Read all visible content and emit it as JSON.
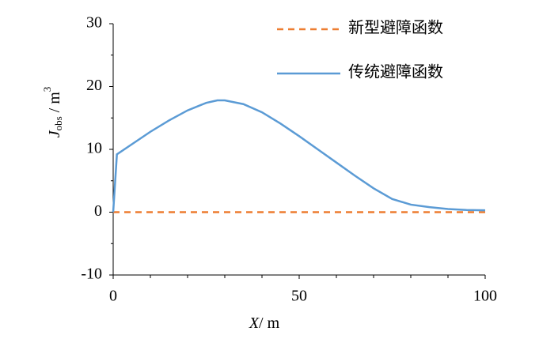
{
  "chart_data": {
    "type": "line",
    "xlabel": [
      "X",
      "/ m"
    ],
    "ylabel": {
      "main": "J",
      "sub": "obs",
      "unit": " / m",
      "sup": "3"
    },
    "xlim": [
      0,
      100
    ],
    "xticks": [
      0,
      50,
      100
    ],
    "xminorticks": [
      10,
      20,
      30,
      40,
      60,
      70,
      80,
      90
    ],
    "ylim": [
      -10,
      30
    ],
    "yticks": [
      -10,
      0,
      10,
      20,
      30
    ],
    "yminorticks": [
      -5,
      5,
      15,
      25
    ],
    "legend": "top-right",
    "series": [
      {
        "name": "新型避障函数",
        "color": "#ED7D31",
        "dash": true,
        "x": [
          0,
          100
        ],
        "values": [
          0,
          0
        ]
      },
      {
        "name": "传统避障函数",
        "color": "#5B9BD5",
        "dash": false,
        "x": [
          0,
          1,
          5,
          10,
          15,
          20,
          25,
          28,
          30,
          35,
          40,
          45,
          50,
          55,
          60,
          65,
          70,
          75,
          80,
          85,
          90,
          95,
          100
        ],
        "values": [
          0,
          9.2,
          10.8,
          12.8,
          14.6,
          16.2,
          17.4,
          17.8,
          17.8,
          17.2,
          15.9,
          14.1,
          12.1,
          10,
          7.9,
          5.8,
          3.8,
          2.1,
          1.2,
          0.8,
          0.5,
          0.35,
          0.3
        ]
      }
    ]
  }
}
